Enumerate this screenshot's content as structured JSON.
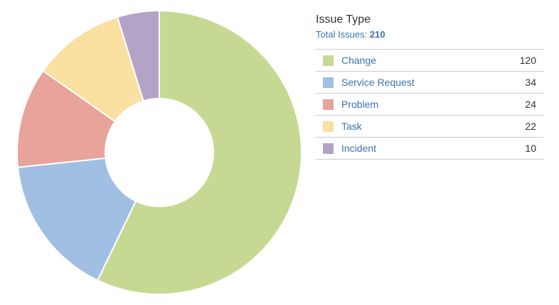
{
  "legend": {
    "title": "Issue Type",
    "total_label": "Total Issues:",
    "total_value": "210"
  },
  "chart_data": {
    "type": "pie",
    "variant": "donut",
    "categories": [
      "Change",
      "Service Request",
      "Problem",
      "Task",
      "Incident"
    ],
    "values": [
      120,
      34,
      24,
      22,
      10
    ],
    "colors": [
      "#c6d992",
      "#a0bfe3",
      "#e8a39a",
      "#f9e0a1",
      "#b3a4c7"
    ],
    "start_angle_deg": 0,
    "direction": "clockwise",
    "legend_position": "right"
  }
}
